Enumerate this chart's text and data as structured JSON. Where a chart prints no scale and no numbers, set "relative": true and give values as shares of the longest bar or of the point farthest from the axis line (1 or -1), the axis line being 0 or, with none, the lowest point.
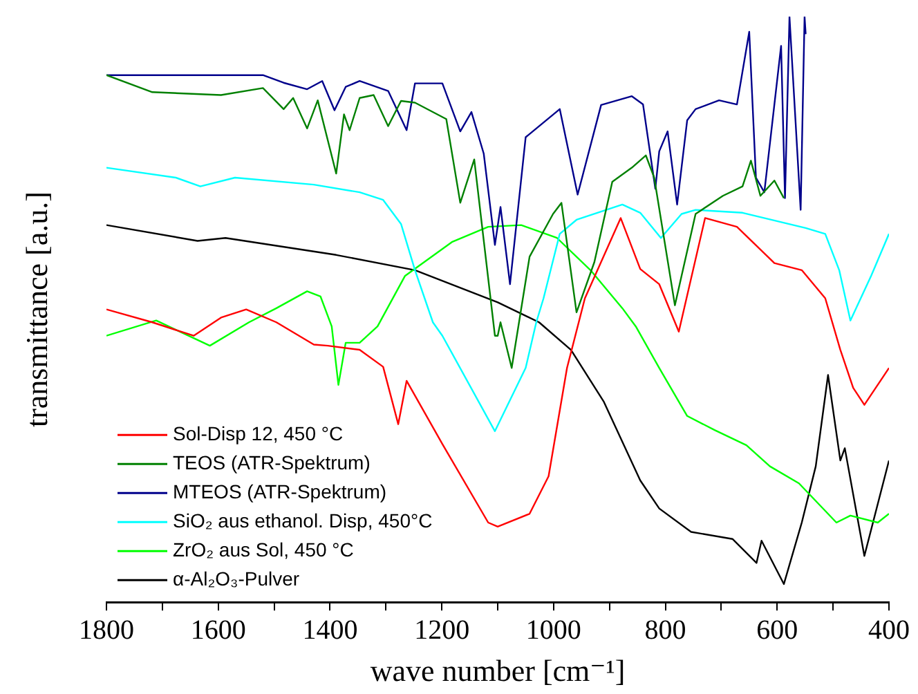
{
  "chart_data": {
    "type": "line",
    "xlabel": "wave number [cm⁻¹]",
    "ylabel": "transmittance [a.u.]",
    "relative": true,
    "xlim": [
      1800,
      400
    ],
    "xticks": [
      1800,
      {
        "value": 1700,
        "label": null
      },
      1600,
      {
        "value": 1500,
        "label": null
      },
      1400,
      {
        "value": 1300,
        "label": null
      },
      1200,
      {
        "value": 1100,
        "label": null
      },
      1000,
      {
        "value": 900,
        "label": null
      },
      800,
      {
        "value": 700,
        "label": null
      },
      600,
      {
        "value": 500,
        "label": null
      },
      400
    ],
    "grid": false,
    "legend": "bottom left",
    "marker": "none",
    "line_style": "solid",
    "series": [
      {
        "name": "Sol-Disp 12, 450 °C",
        "color": "#ff0000",
        "x": [
          1800,
          1718,
          1644,
          1595,
          1550,
          1496,
          1429,
          1404,
          1347,
          1305,
          1278,
          1263,
          1199,
          1117,
          1100,
          1043,
          1009,
          976,
          944,
          880,
          845,
          811,
          776,
          729,
          672,
          605,
          556,
          514,
          487,
          464,
          444,
          400
        ],
        "values": [
          0.5,
          0.478,
          0.455,
          0.486,
          0.5,
          0.478,
          0.44,
          0.438,
          0.431,
          0.402,
          0.304,
          0.378,
          0.27,
          0.136,
          0.129,
          0.151,
          0.215,
          0.4,
          0.519,
          0.656,
          0.569,
          0.543,
          0.462,
          0.656,
          0.641,
          0.579,
          0.567,
          0.519,
          0.431,
          0.366,
          0.337,
          0.4
        ]
      },
      {
        "name": "TEOS (ATR-Spektrum)",
        "color": "#008000",
        "x": [
          1800,
          1718,
          1595,
          1520,
          1483,
          1466,
          1441,
          1422,
          1389,
          1375,
          1365,
          1347,
          1322,
          1296,
          1273,
          1248,
          1192,
          1167,
          1142,
          1105,
          1100,
          1095,
          1075,
          1043,
          1001,
          986,
          959,
          927,
          895,
          860,
          835,
          820,
          783,
          746,
          697,
          662,
          647,
          630,
          605,
          588
        ],
        "values": [
          0.9,
          0.871,
          0.866,
          0.878,
          0.842,
          0.861,
          0.809,
          0.857,
          0.732,
          0.833,
          0.806,
          0.861,
          0.866,
          0.813,
          0.856,
          0.853,
          0.825,
          0.682,
          0.756,
          0.455,
          0.455,
          0.478,
          0.4,
          0.59,
          0.663,
          0.682,
          0.495,
          0.581,
          0.718,
          0.742,
          0.763,
          0.725,
          0.507,
          0.663,
          0.694,
          0.71,
          0.754,
          0.694,
          0.72,
          0.69
        ]
      },
      {
        "name": "MTEOS (ATR-Spektrum)",
        "color": "#00008b",
        "x": [
          1800,
          1520,
          1483,
          1441,
          1414,
          1392,
          1372,
          1347,
          1296,
          1263,
          1248,
          1199,
          1167,
          1147,
          1125,
          1105,
          1095,
          1078,
          1050,
          989,
          957,
          915,
          860,
          840,
          818,
          811,
          796,
          779,
          761,
          746,
          704,
          672,
          650,
          638,
          623,
          593,
          586,
          578,
          558,
          551,
          549
        ],
        "values": [
          0.9,
          0.9,
          0.887,
          0.876,
          0.89,
          0.84,
          0.88,
          0.89,
          0.873,
          0.806,
          0.886,
          0.886,
          0.804,
          0.837,
          0.766,
          0.61,
          0.675,
          0.543,
          0.794,
          0.842,
          0.696,
          0.849,
          0.864,
          0.85,
          0.706,
          0.77,
          0.804,
          0.679,
          0.823,
          0.842,
          0.857,
          0.85,
          0.974,
          0.725,
          0.7,
          0.95,
          0.69,
          1,
          0.67,
          1,
          0.97
        ]
      },
      {
        "name": "SiO₂ aus ethanol. Disp, 450°C",
        "color": "#00ffff",
        "x": [
          1800,
          1676,
          1632,
          1570,
          1429,
          1347,
          1305,
          1273,
          1248,
          1216,
          1199,
          1105,
          1050,
          1031,
          1018,
          989,
          959,
          877,
          845,
          808,
          771,
          746,
          662,
          549,
          514,
          489,
          469,
          432,
          400
        ],
        "values": [
          0.742,
          0.725,
          0.71,
          0.725,
          0.713,
          0.7,
          0.687,
          0.646,
          0.567,
          0.478,
          0.455,
          0.292,
          0.4,
          0.478,
          0.519,
          0.629,
          0.653,
          0.679,
          0.665,
          0.622,
          0.663,
          0.67,
          0.665,
          0.639,
          0.629,
          0.567,
          0.481,
          0.557,
          0.629
        ]
      },
      {
        "name": "ZrO₂ aus Sol, 450 °C",
        "color": "#00ff00",
        "x": [
          1800,
          1711,
          1615,
          1545,
          1496,
          1441,
          1417,
          1397,
          1385,
          1372,
          1347,
          1315,
          1266,
          1182,
          1117,
          1058,
          994,
          934,
          877,
          853,
          811,
          761,
          712,
          655,
          613,
          561,
          494,
          469,
          420,
          400
        ],
        "values": [
          0.455,
          0.481,
          0.438,
          0.478,
          0.502,
          0.531,
          0.522,
          0.471,
          0.371,
          0.443,
          0.443,
          0.471,
          0.557,
          0.615,
          0.641,
          0.644,
          0.622,
          0.567,
          0.502,
          0.471,
          0.4,
          0.318,
          0.294,
          0.268,
          0.232,
          0.203,
          0.136,
          0.148,
          0.136,
          0.151
        ]
      },
      {
        "name": "α-Al₂O₃-Pulver",
        "color": "#000000",
        "x": [
          1800,
          1637,
          1587,
          1389,
          1248,
          1100,
          1026,
          969,
          910,
          845,
          811,
          754,
          680,
          637,
          628,
          588,
          556,
          531,
          509,
          487,
          479,
          444,
          400
        ],
        "values": [
          0.644,
          0.617,
          0.622,
          0.593,
          0.567,
          0.512,
          0.478,
          0.431,
          0.342,
          0.208,
          0.16,
          0.12,
          0.108,
          0.067,
          0.105,
          0.031,
          0.136,
          0.232,
          0.388,
          0.242,
          0.263,
          0.079,
          0.242
        ]
      }
    ]
  }
}
